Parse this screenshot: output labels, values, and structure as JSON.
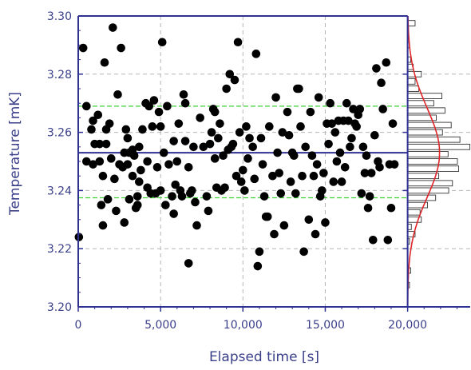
{
  "chart_data": {
    "type": "scatter",
    "xlabel": "Elapsed time [s]",
    "ylabel": "Temperature [mK]",
    "xlim": [
      0,
      23800
    ],
    "ylim": [
      3.2,
      3.3
    ],
    "x_ticks": [
      0,
      5000,
      10000,
      15000,
      20000
    ],
    "x_tick_labels": [
      "0",
      "5,000",
      "10,000",
      "15,000",
      "20,000"
    ],
    "y_ticks": [
      3.2,
      3.22,
      3.24,
      3.26,
      3.28,
      3.3
    ],
    "y_tick_labels": [
      "3.20",
      "3.22",
      "3.24",
      "3.26",
      "3.28",
      "3.30"
    ],
    "grid": true,
    "colors": {
      "axis": "#2e3192",
      "points": "#000000",
      "mean_line": "#2e3192",
      "sigma_lines": "#39d130",
      "fit_curve": "#e0262a",
      "grid": "#b5b5b5"
    },
    "reference_lines": [
      {
        "kind": "mean",
        "y": 3.253
      },
      {
        "kind": "upper-sigma",
        "y": 3.269
      },
      {
        "kind": "lower-sigma",
        "y": 3.2375
      }
    ],
    "series": [
      {
        "points": [
          [
            40,
            3.224
          ],
          [
            300,
            3.289
          ],
          [
            500,
            3.269
          ],
          [
            500,
            3.25
          ],
          [
            800,
            3.261
          ],
          [
            900,
            3.264
          ],
          [
            900,
            3.249
          ],
          [
            1000,
            3.256
          ],
          [
            1200,
            3.266
          ],
          [
            1300,
            3.256
          ],
          [
            1300,
            3.25
          ],
          [
            1400,
            3.235
          ],
          [
            1500,
            3.245
          ],
          [
            1500,
            3.228
          ],
          [
            1600,
            3.284
          ],
          [
            1700,
            3.261
          ],
          [
            1700,
            3.256
          ],
          [
            1800,
            3.237
          ],
          [
            1900,
            3.263
          ],
          [
            2000,
            3.251
          ],
          [
            2100,
            3.296
          ],
          [
            2200,
            3.244
          ],
          [
            2300,
            3.233
          ],
          [
            2400,
            3.273
          ],
          [
            2500,
            3.249
          ],
          [
            2600,
            3.289
          ],
          [
            2700,
            3.248
          ],
          [
            2800,
            3.229
          ],
          [
            2800,
            3.253
          ],
          [
            2900,
            3.261
          ],
          [
            3000,
            3.258
          ],
          [
            3000,
            3.249
          ],
          [
            3100,
            3.253
          ],
          [
            3100,
            3.237
          ],
          [
            3300,
            3.254
          ],
          [
            3300,
            3.245
          ],
          [
            3400,
            3.252
          ],
          [
            3500,
            3.234
          ],
          [
            3600,
            3.238
          ],
          [
            3600,
            3.235
          ],
          [
            3700,
            3.255
          ],
          [
            3700,
            3.243
          ],
          [
            3800,
            3.247
          ],
          [
            3900,
            3.261
          ],
          [
            4100,
            3.27
          ],
          [
            4200,
            3.25
          ],
          [
            4200,
            3.241
          ],
          [
            4300,
            3.269
          ],
          [
            4400,
            3.239
          ],
          [
            4500,
            3.262
          ],
          [
            4600,
            3.271
          ],
          [
            4700,
            3.239
          ],
          [
            4800,
            3.248
          ],
          [
            4900,
            3.267
          ],
          [
            5000,
            3.262
          ],
          [
            5000,
            3.24
          ],
          [
            5100,
            3.291
          ],
          [
            5200,
            3.253
          ],
          [
            5300,
            3.235
          ],
          [
            5400,
            3.269
          ],
          [
            5500,
            3.249
          ],
          [
            5700,
            3.238
          ],
          [
            5800,
            3.257
          ],
          [
            5800,
            3.232
          ],
          [
            5900,
            3.242
          ],
          [
            6000,
            3.25
          ],
          [
            6100,
            3.263
          ],
          [
            6200,
            3.24
          ],
          [
            6300,
            3.238
          ],
          [
            6400,
            3.273
          ],
          [
            6500,
            3.27
          ],
          [
            6500,
            3.257
          ],
          [
            6700,
            3.215
          ],
          [
            6700,
            3.248
          ],
          [
            6800,
            3.239
          ],
          [
            6900,
            3.24
          ],
          [
            7000,
            3.255
          ],
          [
            7100,
            3.236
          ],
          [
            7200,
            3.228
          ],
          [
            7400,
            3.265
          ],
          [
            7600,
            3.255
          ],
          [
            7800,
            3.238
          ],
          [
            7900,
            3.233
          ],
          [
            8000,
            3.256
          ],
          [
            8100,
            3.26
          ],
          [
            8200,
            3.268
          ],
          [
            8300,
            3.251
          ],
          [
            8300,
            3.267
          ],
          [
            8400,
            3.241
          ],
          [
            8500,
            3.258
          ],
          [
            8600,
            3.263
          ],
          [
            8700,
            3.24
          ],
          [
            8800,
            3.252
          ],
          [
            8900,
            3.241
          ],
          [
            9000,
            3.275
          ],
          [
            9100,
            3.254
          ],
          [
            9200,
            3.28
          ],
          [
            9300,
            3.255
          ],
          [
            9400,
            3.256
          ],
          [
            9500,
            3.278
          ],
          [
            9600,
            3.245
          ],
          [
            9700,
            3.291
          ],
          [
            9800,
            3.26
          ],
          [
            9900,
            3.243
          ],
          [
            10000,
            3.247
          ],
          [
            10100,
            3.24
          ],
          [
            10200,
            3.262
          ],
          [
            10300,
            3.251
          ],
          [
            10400,
            3.258
          ],
          [
            10600,
            3.255
          ],
          [
            10700,
            3.244
          ],
          [
            10800,
            3.287
          ],
          [
            10900,
            3.214
          ],
          [
            11000,
            3.219
          ],
          [
            11100,
            3.258
          ],
          [
            11200,
            3.249
          ],
          [
            11300,
            3.238
          ],
          [
            11400,
            3.231
          ],
          [
            11500,
            3.231
          ],
          [
            11600,
            3.262
          ],
          [
            11800,
            3.245
          ],
          [
            11900,
            3.225
          ],
          [
            12000,
            3.272
          ],
          [
            12100,
            3.253
          ],
          [
            12200,
            3.246
          ],
          [
            12300,
            3.239
          ],
          [
            12400,
            3.26
          ],
          [
            12500,
            3.228
          ],
          [
            12700,
            3.267
          ],
          [
            12800,
            3.259
          ],
          [
            12900,
            3.243
          ],
          [
            13000,
            3.253
          ],
          [
            13100,
            3.252
          ],
          [
            13200,
            3.239
          ],
          [
            13300,
            3.275
          ],
          [
            13400,
            3.275
          ],
          [
            13500,
            3.262
          ],
          [
            13600,
            3.245
          ],
          [
            13700,
            3.219
          ],
          [
            13800,
            3.255
          ],
          [
            14000,
            3.23
          ],
          [
            14100,
            3.267
          ],
          [
            14200,
            3.252
          ],
          [
            14300,
            3.245
          ],
          [
            14400,
            3.225
          ],
          [
            14500,
            3.249
          ],
          [
            14600,
            3.272
          ],
          [
            14700,
            3.238
          ],
          [
            14800,
            3.24
          ],
          [
            14900,
            3.246
          ],
          [
            15000,
            3.229
          ],
          [
            15100,
            3.263
          ],
          [
            15200,
            3.256
          ],
          [
            15300,
            3.27
          ],
          [
            15400,
            3.263
          ],
          [
            15500,
            3.243
          ],
          [
            15600,
            3.26
          ],
          [
            15700,
            3.25
          ],
          [
            15800,
            3.264
          ],
          [
            15900,
            3.253
          ],
          [
            16000,
            3.243
          ],
          [
            16100,
            3.264
          ],
          [
            16200,
            3.248
          ],
          [
            16300,
            3.27
          ],
          [
            16400,
            3.264
          ],
          [
            16500,
            3.255
          ],
          [
            16600,
            3.258
          ],
          [
            16700,
            3.268
          ],
          [
            16800,
            3.263
          ],
          [
            16900,
            3.262
          ],
          [
            17000,
            3.266
          ],
          [
            17100,
            3.268
          ],
          [
            17200,
            3.239
          ],
          [
            17300,
            3.255
          ],
          [
            17400,
            3.246
          ],
          [
            17500,
            3.252
          ],
          [
            17600,
            3.234
          ],
          [
            17700,
            3.238
          ],
          [
            17800,
            3.246
          ],
          [
            17900,
            3.223
          ],
          [
            18000,
            3.259
          ],
          [
            18100,
            3.282
          ],
          [
            18200,
            3.25
          ],
          [
            18300,
            3.248
          ],
          [
            18400,
            3.277
          ],
          [
            18500,
            3.268
          ],
          [
            18700,
            3.284
          ],
          [
            18800,
            3.223
          ],
          [
            18900,
            3.249
          ],
          [
            19000,
            3.234
          ],
          [
            19100,
            3.263
          ],
          [
            19200,
            3.249
          ]
        ]
      }
    ],
    "histogram": {
      "orientation": "horizontal",
      "x_start": 20000,
      "bins": [
        [
          3.2225,
          0.03
        ],
        [
          3.225,
          0.12
        ],
        [
          3.2275,
          0.06
        ],
        [
          3.23,
          0.22
        ],
        [
          3.2325,
          0.2
        ],
        [
          3.235,
          0.32
        ],
        [
          3.2375,
          0.45
        ],
        [
          3.24,
          0.66
        ],
        [
          3.2425,
          0.72
        ],
        [
          3.245,
          0.5
        ],
        [
          3.2475,
          0.82
        ],
        [
          3.25,
          0.8
        ],
        [
          3.2525,
          0.65
        ],
        [
          3.255,
          1.0
        ],
        [
          3.2575,
          0.84
        ],
        [
          3.26,
          0.56
        ],
        [
          3.2625,
          0.7
        ],
        [
          3.265,
          0.46
        ],
        [
          3.2675,
          0.6
        ],
        [
          3.27,
          0.42
        ],
        [
          3.2725,
          0.55
        ],
        [
          3.275,
          0.18
        ],
        [
          3.2775,
          0.12
        ],
        [
          3.28,
          0.22
        ],
        [
          3.2825,
          0.09
        ],
        [
          3.285,
          0.05
        ],
        [
          3.29,
          0.03
        ],
        [
          3.2975,
          0.12
        ],
        [
          3.2125,
          0.05
        ],
        [
          3.2075,
          0.03
        ]
      ],
      "fit": {
        "type": "gaussian",
        "mean": 3.253,
        "sigma": 0.0155
      }
    }
  }
}
